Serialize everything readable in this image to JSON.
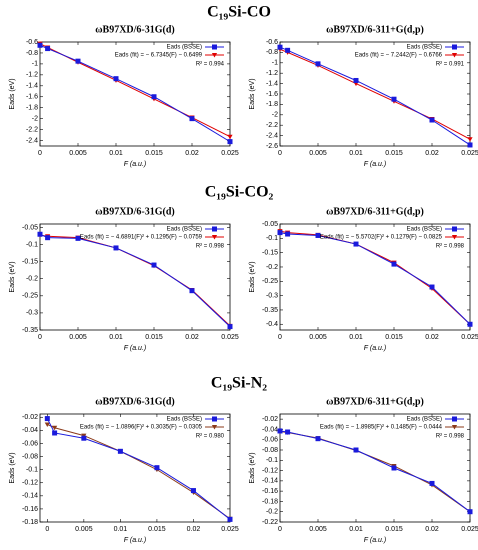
{
  "sections": [
    "C₁₉Si-CO",
    "C₁₉Si-CO₂",
    "C₁₉Si-N₂"
  ],
  "chart_data": [
    {
      "type": "line",
      "title": "ωB97XD/6-31G(d)",
      "xlabel": "F (a.u.)",
      "ylabel": "Eads (eV)",
      "x": [
        0,
        0.001,
        0.005,
        0.01,
        0.015,
        0.02,
        0.025
      ],
      "xlim": [
        0,
        0.025
      ],
      "xticks": [
        0,
        0.005,
        0.01,
        0.015,
        0.02,
        0.025
      ],
      "ylim": [
        -2.5,
        -0.6
      ],
      "yticks": [
        -0.6,
        -0.8,
        -1,
        -1.2,
        -1.4,
        -1.6,
        -1.8,
        -2,
        -2.2,
        -2.4
      ],
      "series": [
        {
          "name": "Eads (BSSE)",
          "color": "#1a1adc",
          "values": [
            -0.66,
            -0.72,
            -0.95,
            -1.27,
            -1.6,
            -2.0,
            -2.42
          ]
        },
        {
          "name": "Eads (fit) = − 6.7345(F) − 0.6499",
          "color": "#e00000",
          "values": [
            -0.63,
            -0.7,
            -0.97,
            -1.3,
            -1.64,
            -1.98,
            -2.33
          ]
        }
      ],
      "annotation": "R² = 0.994"
    },
    {
      "type": "line",
      "title": "ωB97XD/6-311+G(d,p)",
      "xlabel": "F (a.u.)",
      "ylabel": "Eads (eV)",
      "x": [
        0,
        0.001,
        0.005,
        0.01,
        0.015,
        0.02,
        0.025
      ],
      "xlim": [
        0,
        0.025
      ],
      "xticks": [
        0,
        0.005,
        0.01,
        0.015,
        0.02,
        0.025
      ],
      "ylim": [
        -2.6,
        -0.6
      ],
      "yticks": [
        -0.6,
        -0.8,
        -1,
        -1.2,
        -1.4,
        -1.6,
        -1.8,
        -2,
        -2.2,
        -2.4,
        -2.6
      ],
      "series": [
        {
          "name": "Eads (BSSE)",
          "color": "#1a1adc",
          "values": [
            -0.7,
            -0.76,
            -1.02,
            -1.34,
            -1.7,
            -2.1,
            -2.58
          ]
        },
        {
          "name": "Eads (fit) = − 7.2442(F) − 0.6766",
          "color": "#e00000",
          "values": [
            -0.74,
            -0.8,
            -1.05,
            -1.4,
            -1.74,
            -2.08,
            -2.47
          ]
        }
      ],
      "annotation": "R² = 0.991"
    },
    {
      "type": "line",
      "title": "ωB97XD/6-31G(d)",
      "xlabel": "F (a.u.)",
      "ylabel": "Eads (eV)",
      "x": [
        0,
        0.001,
        0.005,
        0.01,
        0.015,
        0.02,
        0.025
      ],
      "xlim": [
        0,
        0.025
      ],
      "xticks": [
        0,
        0.005,
        0.01,
        0.015,
        0.02,
        0.025
      ],
      "ylim": [
        -0.35,
        -0.04
      ],
      "yticks": [
        -0.05,
        -0.1,
        -0.15,
        -0.2,
        -0.25,
        -0.3,
        -0.35
      ],
      "series": [
        {
          "name": "Eads (BSSE)",
          "color": "#1a1adc",
          "values": [
            -0.07,
            -0.08,
            -0.082,
            -0.11,
            -0.16,
            -0.235,
            -0.34
          ]
        },
        {
          "name": "Eads (fit) = − 4.6891(F)² + 0.1295(F) − 0.0759",
          "color": "#e00000",
          "values": [
            -0.072,
            -0.076,
            -0.08,
            -0.11,
            -0.162,
            -0.233,
            -0.338
          ]
        }
      ],
      "annotation": "R² = 0.998"
    },
    {
      "type": "line",
      "title": "ωB97XD/6-311+G(d,p)",
      "xlabel": "F (a.u.)",
      "ylabel": "Eads (eV)",
      "x": [
        0,
        0.001,
        0.005,
        0.01,
        0.015,
        0.02,
        0.025
      ],
      "xlim": [
        0,
        0.025
      ],
      "xticks": [
        0,
        0.005,
        0.01,
        0.015,
        0.02,
        0.025
      ],
      "ylim": [
        -0.42,
        -0.05
      ],
      "yticks": [
        -0.05,
        -0.1,
        -0.15,
        -0.2,
        -0.25,
        -0.3,
        -0.35,
        -0.4
      ],
      "series": [
        {
          "name": "Eads (BSSE)",
          "color": "#1a1adc",
          "values": [
            -0.08,
            -0.085,
            -0.09,
            -0.12,
            -0.19,
            -0.27,
            -0.4
          ]
        },
        {
          "name": "Eads (fit) = − 5.5702(F)² + 0.1279(F) − 0.0825",
          "color": "#e00000",
          "values": [
            -0.075,
            -0.08,
            -0.088,
            -0.12,
            -0.185,
            -0.275,
            -0.4
          ]
        }
      ],
      "annotation": "R² = 0.998"
    },
    {
      "type": "line",
      "title": "ωB97XD/6-31G(d)",
      "xlabel": "F (a.u.)",
      "ylabel": "Eads (eV)",
      "x": [
        0,
        0.001,
        0.005,
        0.01,
        0.015,
        0.02,
        0.025
      ],
      "xlim": [
        -0.001,
        0.025
      ],
      "xticks": [
        0,
        0.005,
        0.01,
        0.015,
        0.02,
        0.025
      ],
      "ylim": [
        -0.18,
        -0.015
      ],
      "yticks": [
        -0.02,
        -0.04,
        -0.06,
        -0.08,
        -0.1,
        -0.12,
        -0.14,
        -0.16,
        -0.18
      ],
      "series": [
        {
          "name": "Eads (BSSE)",
          "color": "#1a1adc",
          "values": [
            -0.022,
            -0.044,
            -0.052,
            -0.072,
            -0.097,
            -0.132,
            -0.176
          ]
        },
        {
          "name": "Eads (fit) = − 1.0896(F)² + 0.3035(F) − 0.0305",
          "color": "#8b3a1a",
          "values": [
            -0.031,
            -0.036,
            -0.048,
            -0.072,
            -0.1,
            -0.135,
            -0.175
          ]
        }
      ],
      "annotation": "R² = 0.980"
    },
    {
      "type": "line",
      "title": "ωB97XD/6-311+G(d,p)",
      "xlabel": "F (a.u.)",
      "ylabel": "Eads (eV)",
      "x": [
        0,
        0.001,
        0.005,
        0.01,
        0.015,
        0.02,
        0.025
      ],
      "xlim": [
        0,
        0.025
      ],
      "xticks": [
        0,
        0.005,
        0.01,
        0.015,
        0.02,
        0.025
      ],
      "ylim": [
        -0.22,
        -0.01
      ],
      "yticks": [
        -0.02,
        -0.04,
        -0.06,
        -0.08,
        -0.1,
        -0.12,
        -0.14,
        -0.16,
        -0.18,
        -0.2,
        -0.22
      ],
      "series": [
        {
          "name": "Eads (BSSE)",
          "color": "#1a1adc",
          "values": [
            -0.043,
            -0.045,
            -0.058,
            -0.08,
            -0.115,
            -0.145,
            -0.2
          ]
        },
        {
          "name": "Eads (fit) = − 1.8985(F)² + 0.1485(F) − 0.0444",
          "color": "#8b3a1a",
          "values": [
            -0.044,
            -0.046,
            -0.057,
            -0.081,
            -0.111,
            -0.148,
            -0.2
          ]
        }
      ],
      "annotation": "R² = 0.998"
    }
  ]
}
